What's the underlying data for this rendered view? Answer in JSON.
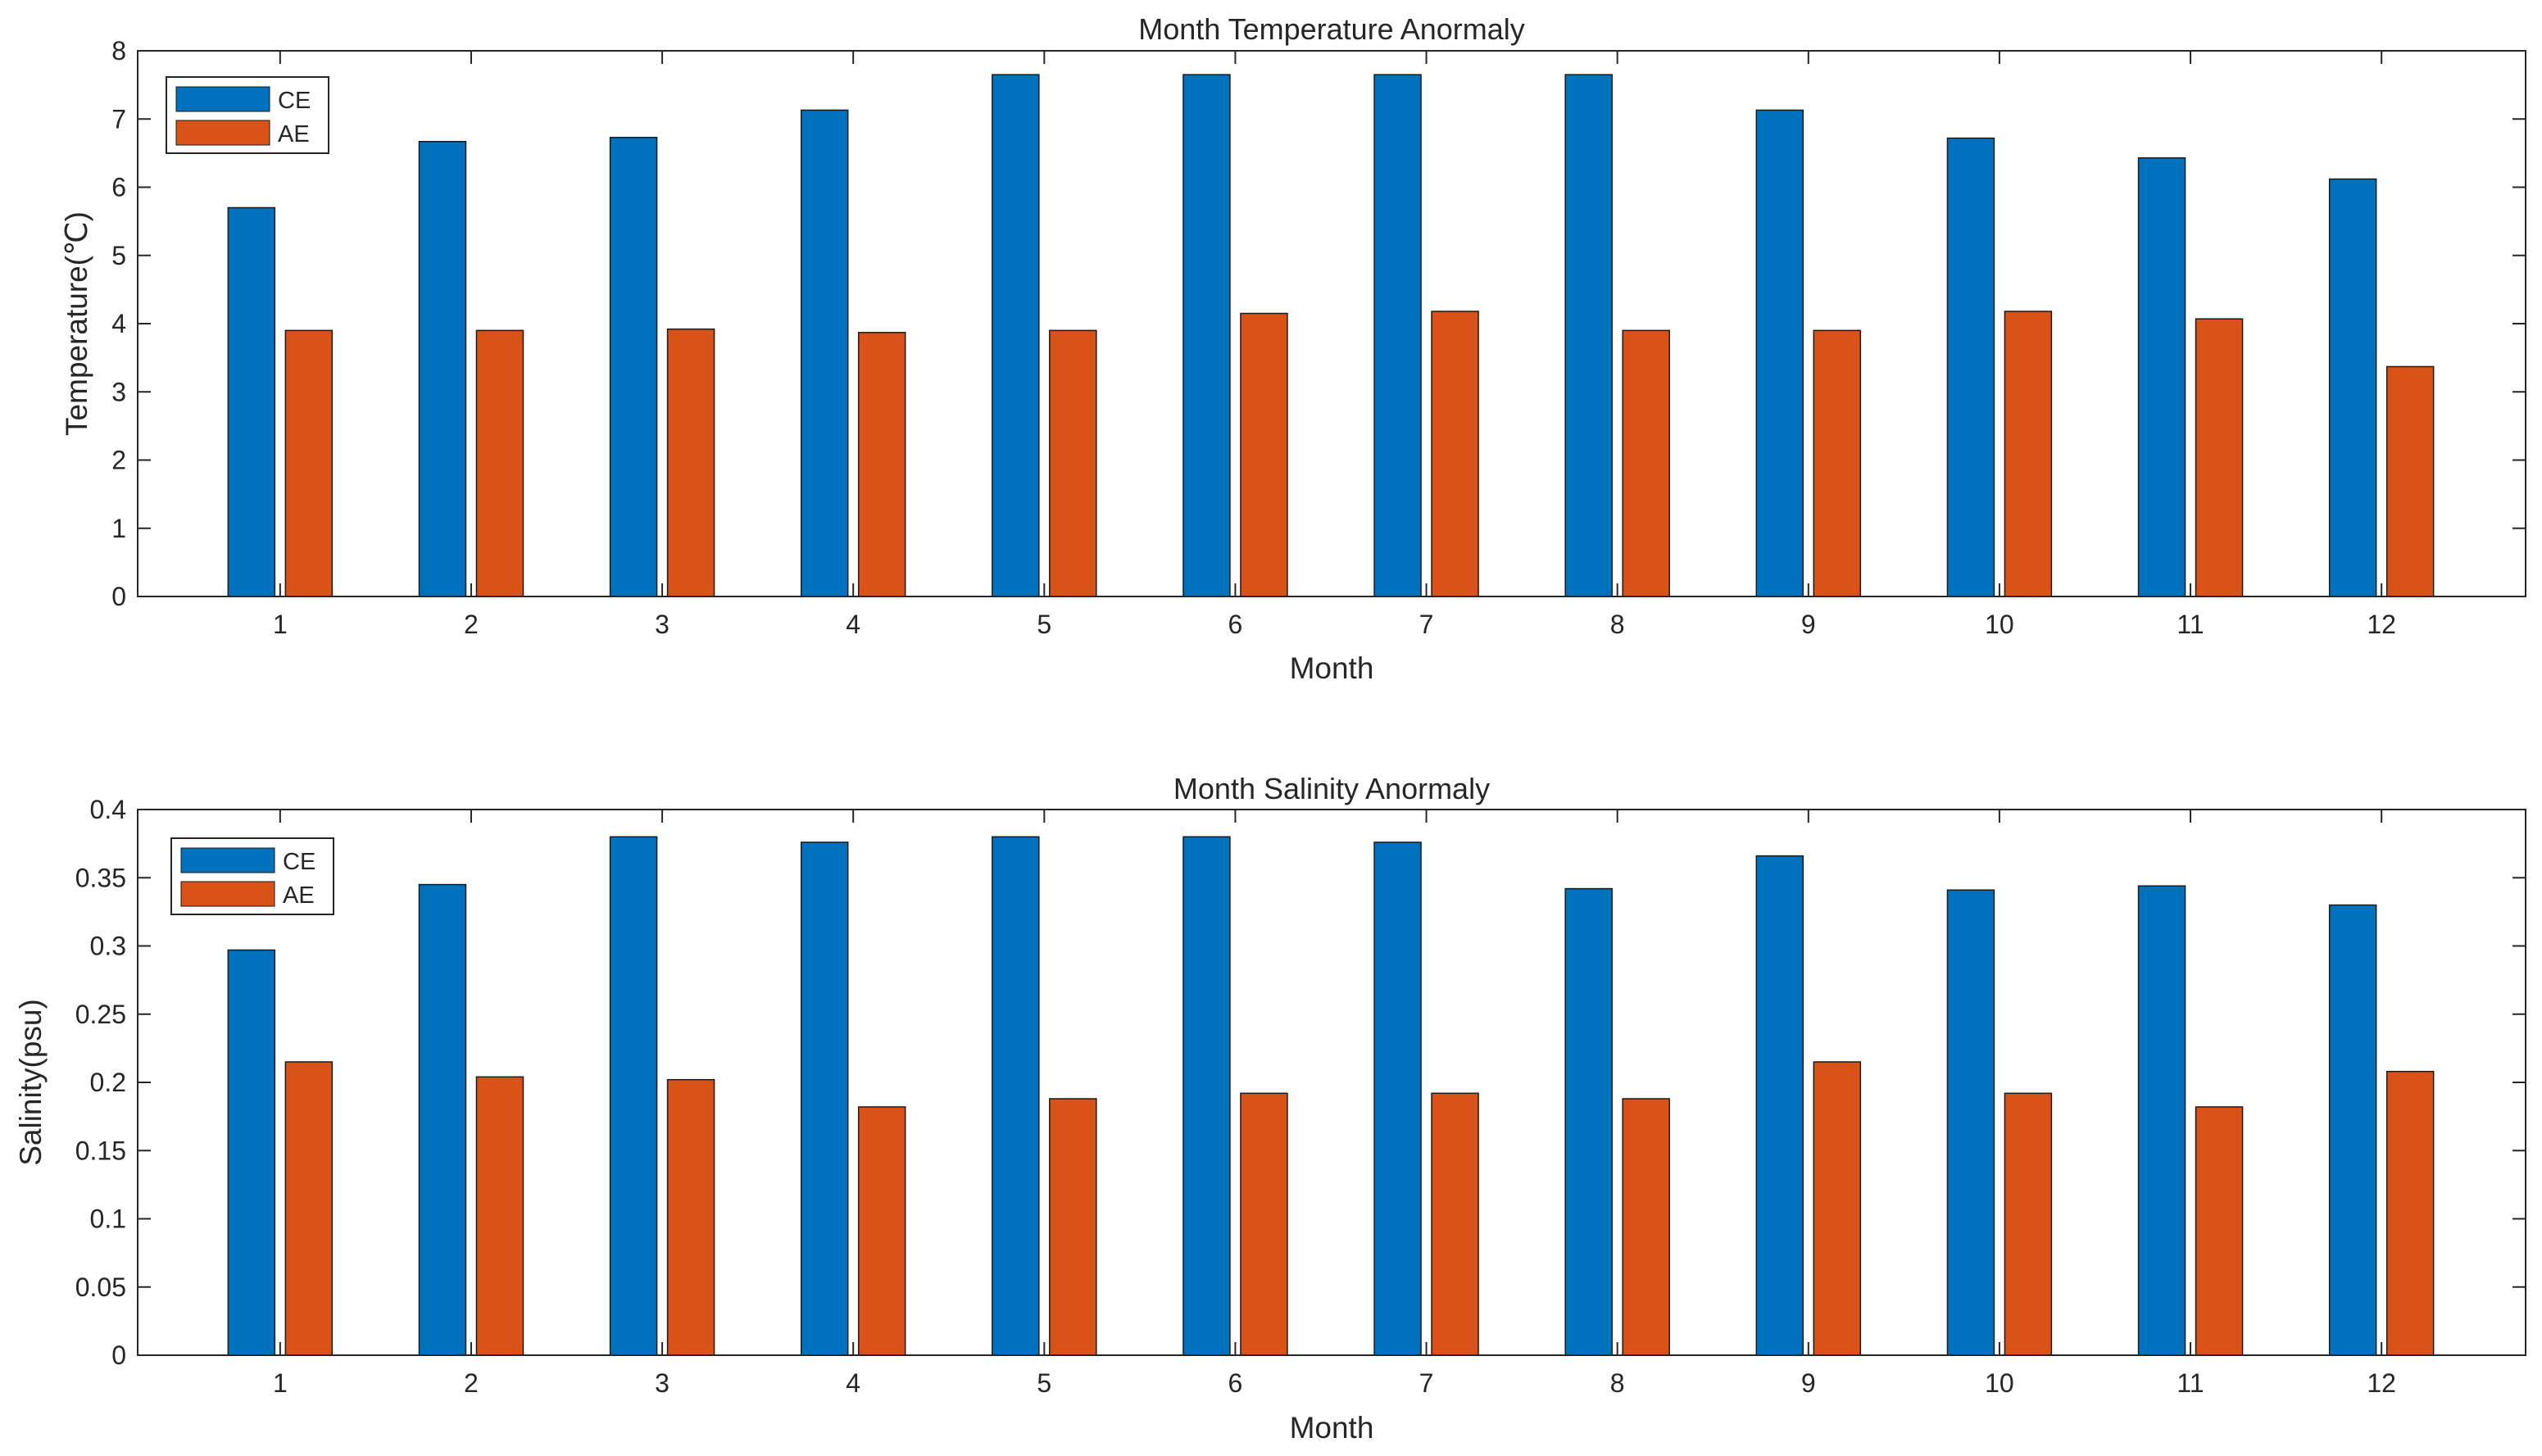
{
  "chart_data": [
    {
      "type": "bar",
      "title": "Month Temperature Anormaly",
      "xlabel": "Month",
      "ylabel": "Temperature(℃)",
      "categories": [
        "1",
        "2",
        "3",
        "4",
        "5",
        "6",
        "7",
        "8",
        "9",
        "10",
        "11",
        "12"
      ],
      "series": [
        {
          "name": "CE",
          "color": "#0072BD",
          "values": [
            5.7,
            6.67,
            6.73,
            7.13,
            7.65,
            7.65,
            7.65,
            7.65,
            7.13,
            6.72,
            6.43,
            6.12
          ]
        },
        {
          "name": "AE",
          "color": "#D95319",
          "values": [
            3.9,
            3.9,
            3.92,
            3.87,
            3.9,
            4.15,
            4.18,
            3.9,
            3.9,
            4.18,
            4.07,
            3.37
          ]
        }
      ],
      "ylim": [
        0,
        8
      ],
      "yticks": [
        "0",
        "1",
        "2",
        "3",
        "4",
        "5",
        "6",
        "7",
        "8"
      ],
      "grid": false,
      "legend_position": "top-left"
    },
    {
      "type": "bar",
      "title": "Month Salinity Anormaly",
      "xlabel": "Month",
      "ylabel": "Salinity(psu)",
      "categories": [
        "1",
        "2",
        "3",
        "4",
        "5",
        "6",
        "7",
        "8",
        "9",
        "10",
        "11",
        "12"
      ],
      "series": [
        {
          "name": "CE",
          "color": "#0072BD",
          "values": [
            0.297,
            0.345,
            0.38,
            0.376,
            0.38,
            0.38,
            0.376,
            0.342,
            0.366,
            0.341,
            0.344,
            0.33
          ]
        },
        {
          "name": "AE",
          "color": "#D95319",
          "values": [
            0.215,
            0.204,
            0.202,
            0.182,
            0.188,
            0.192,
            0.192,
            0.188,
            0.215,
            0.192,
            0.182,
            0.208
          ]
        }
      ],
      "ylim": [
        0,
        0.4
      ],
      "yticks": [
        "0",
        "0.05",
        "0.1",
        "0.15",
        "0.2",
        "0.25",
        "0.3",
        "0.35",
        "0.4"
      ],
      "grid": false,
      "legend_position": "top-left"
    }
  ]
}
